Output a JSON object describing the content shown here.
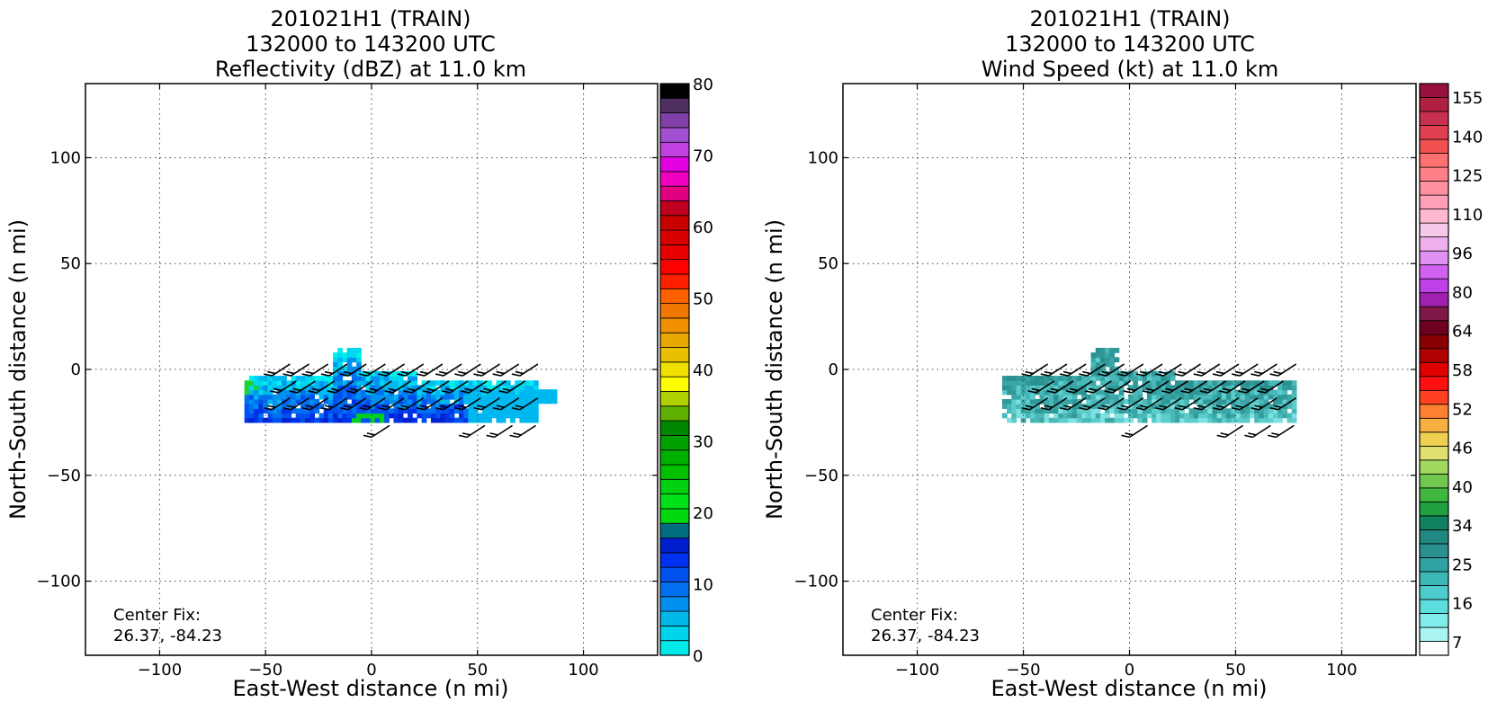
{
  "chart_data": [
    {
      "type": "heatmap",
      "title_lines": [
        "201021H1 (TRAIN)",
        "132000 to 143200 UTC",
        "Reflectivity (dBZ) at 11.0 km"
      ],
      "xlabel": "East-West distance (n mi)",
      "ylabel": "North-South distance (n mi)",
      "xlim": [
        -135,
        135
      ],
      "ylim": [
        -135,
        135
      ],
      "xticks": [
        -100,
        -50,
        0,
        50,
        100
      ],
      "yticks": [
        -100,
        -50,
        0,
        50,
        100
      ],
      "grid": true,
      "annotation_lines": [
        "Center Fix:",
        "26.37, -84.23"
      ],
      "colorbar": {
        "min": 0,
        "max": 80,
        "ticks": [
          0,
          10,
          20,
          30,
          40,
          50,
          60,
          70,
          80
        ],
        "colors": [
          "#00eaea",
          "#00d4ea",
          "#00b8ea",
          "#0090f0",
          "#0070f0",
          "#0050f0",
          "#0030f0",
          "#0020d0",
          "#006e80",
          "#00d810",
          "#00e018",
          "#00d010",
          "#00c000",
          "#00b000",
          "#00a000",
          "#008800",
          "#60b000",
          "#b0d000",
          "#ffff00",
          "#f0e000",
          "#e8c000",
          "#e8a800",
          "#f09000",
          "#f07800",
          "#ff6000",
          "#ff2000",
          "#ff0000",
          "#e80000",
          "#d80000",
          "#c80000",
          "#c00020",
          "#e00080",
          "#f000c0",
          "#e000e0",
          "#c040e0",
          "#a050d0",
          "#8040a8",
          "#503060",
          "#000000"
        ]
      },
      "field_color_scale": "reflectivity"
    },
    {
      "type": "heatmap",
      "title_lines": [
        "201021H1 (TRAIN)",
        "132000 to 143200 UTC",
        "Wind Speed (kt) at 11.0 km"
      ],
      "xlabel": "East-West distance (n mi)",
      "ylabel": "North-South distance (n mi)",
      "xlim": [
        -135,
        135
      ],
      "ylim": [
        -135,
        135
      ],
      "xticks": [
        -100,
        -50,
        0,
        50,
        100
      ],
      "yticks": [
        -100,
        -50,
        0,
        50,
        100
      ],
      "grid": true,
      "annotation_lines": [
        "Center Fix:",
        "26.37, -84.23"
      ],
      "colorbar": {
        "tick_labels": [
          "7",
          "16",
          "25",
          "34",
          "40",
          "46",
          "52",
          "58",
          "64",
          "80",
          "96",
          "110",
          "125",
          "140",
          "155"
        ],
        "colors": [
          "#ffffff",
          "#aaf4f4",
          "#80ecec",
          "#5cdede",
          "#4ccccc",
          "#3cb8b8",
          "#30a4a4",
          "#2a9090",
          "#208880",
          "#108060",
          "#20a040",
          "#40b840",
          "#70c850",
          "#a0d860",
          "#e0e070",
          "#f0d050",
          "#f8b040",
          "#ff8030",
          "#ff4020",
          "#ff1010",
          "#e00000",
          "#b00000",
          "#880000",
          "#700020",
          "#801848",
          "#a020b0",
          "#c040e8",
          "#d060f0",
          "#e090f0",
          "#f0b0f0",
          "#f8c8e8",
          "#ffb8d0",
          "#ffa0b8",
          "#ff90a0",
          "#ff8088",
          "#ff7070",
          "#f05050",
          "#e04050",
          "#c83050",
          "#b02040",
          "#981040"
        ]
      },
      "field_color_scale": "wind"
    }
  ]
}
